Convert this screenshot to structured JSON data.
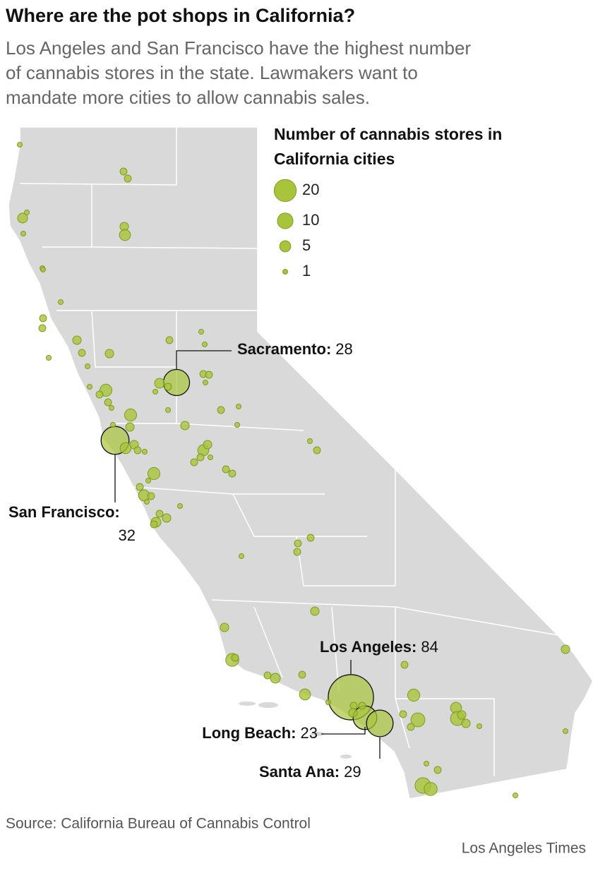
{
  "header": {
    "title": "Where are the pot shops in California?",
    "subtitle": [
      "Los Angeles and San Francisco have the highest number",
      "of cannabis stores in the state. Lawmakers want to",
      "mandate more cities to allow cannabis sales."
    ]
  },
  "legend": {
    "title": [
      "Number of cannabis stores in",
      "California cities"
    ],
    "sizes": [
      20,
      10,
      5,
      1
    ]
  },
  "labeled_cities": [
    {
      "name": "Sacramento:",
      "value": 28
    },
    {
      "name": "San Francisco:",
      "value": 32
    },
    {
      "name": "Los Angeles:",
      "value": 84
    },
    {
      "name": "Long Beach:",
      "value": 23
    },
    {
      "name": "Santa Ana:",
      "value": 29
    }
  ],
  "other_city_store_counts": [
    1,
    2,
    2,
    4,
    1,
    1,
    3,
    5,
    1,
    1,
    1,
    2,
    2,
    3,
    2,
    1,
    1,
    3,
    2,
    1,
    1,
    1,
    6,
    2,
    2,
    1,
    4,
    2,
    1,
    2,
    2,
    1,
    6,
    3,
    1,
    5,
    3,
    2,
    1,
    3,
    1,
    2,
    1,
    1,
    5,
    3,
    2,
    2,
    1,
    2,
    2,
    1,
    2,
    6,
    1,
    2,
    5,
    2,
    1,
    2,
    3,
    4,
    2,
    1,
    2,
    2,
    2,
    1,
    3,
    3,
    7,
    2,
    2,
    4,
    2,
    5,
    1,
    2,
    6,
    2,
    8,
    2,
    5,
    8,
    3,
    3,
    1,
    1,
    2,
    10,
    7,
    1,
    3,
    1,
    2,
    2,
    3
  ],
  "footer": {
    "source": "Source: California Bureau of Cannabis Control",
    "credit": "Los Angeles Times"
  }
}
